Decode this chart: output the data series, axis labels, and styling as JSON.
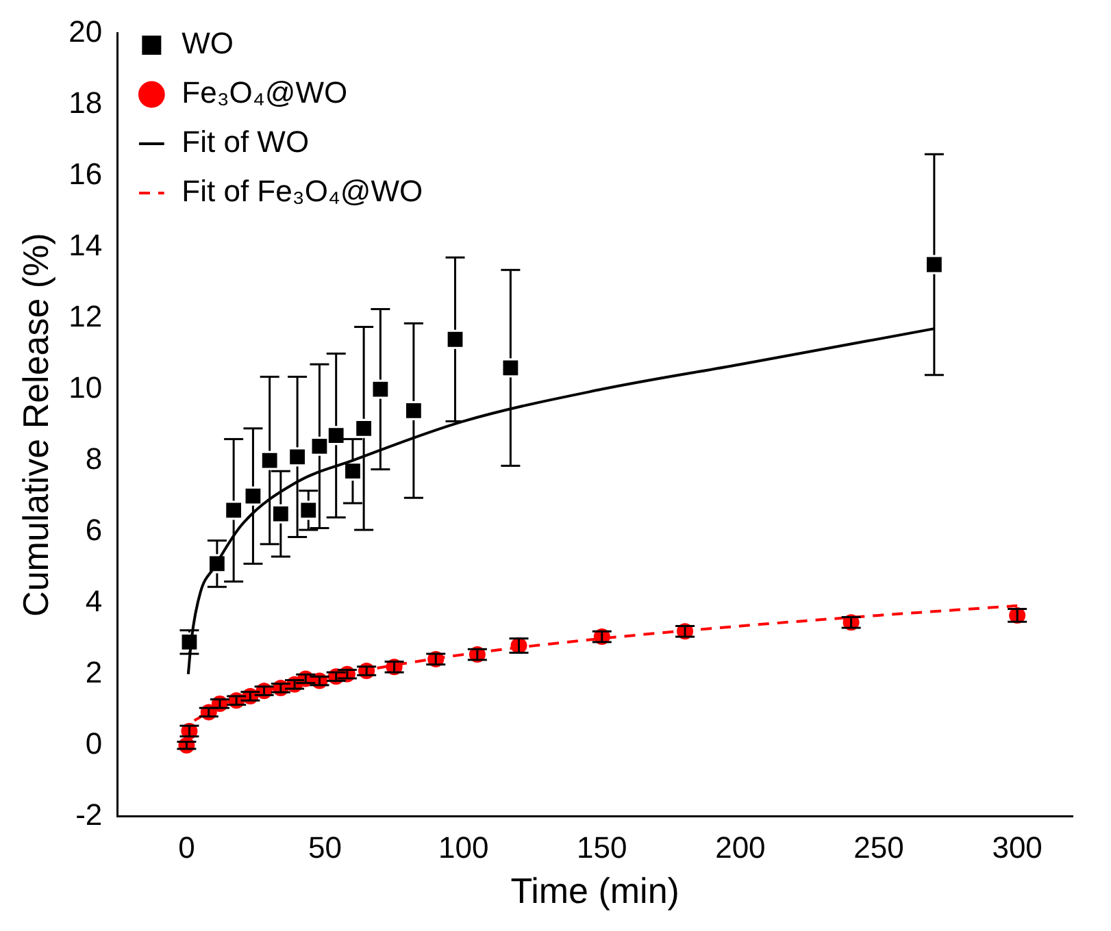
{
  "chart_data": {
    "type": "scatter",
    "xlabel": "Time (min)",
    "ylabel": "Cumulative Release (%)",
    "xlim": [
      -25,
      320
    ],
    "xticks": [
      0,
      50,
      100,
      150,
      200,
      250,
      300
    ],
    "ylim": [
      -2,
      20
    ],
    "yticks": [
      -2,
      0,
      2,
      4,
      6,
      8,
      10,
      12,
      14,
      16,
      18,
      20
    ],
    "grid": false,
    "legend": "top left",
    "series": [
      {
        "name": "WO",
        "type": "scatter",
        "marker": "square",
        "color": "#000000",
        "x": [
          1,
          11,
          17,
          24,
          30,
          34,
          40,
          44,
          48,
          54,
          60,
          64,
          70,
          82,
          97,
          117,
          270
        ],
        "values": [
          2.9,
          5.1,
          6.6,
          7.0,
          8.0,
          6.5,
          8.1,
          6.6,
          8.4,
          8.7,
          7.7,
          8.9,
          10.0,
          9.4,
          11.4,
          10.6,
          13.5
        ],
        "errors": [
          0.33,
          0.65,
          2.0,
          1.9,
          2.35,
          1.2,
          2.25,
          0.55,
          2.3,
          2.3,
          0.9,
          2.85,
          2.25,
          2.45,
          2.3,
          2.75,
          3.1
        ]
      },
      {
        "name": "Fe₃O₄@WO",
        "type": "scatter",
        "marker": "circle",
        "color": "#ff0000",
        "x": [
          0,
          1,
          8,
          12,
          18,
          23,
          28,
          34,
          39,
          43,
          48,
          54,
          58,
          65,
          75,
          90,
          105,
          120,
          150,
          180,
          240,
          300
        ],
        "values": [
          0,
          0.4,
          0.93,
          1.17,
          1.26,
          1.38,
          1.53,
          1.61,
          1.71,
          1.87,
          1.81,
          1.93,
          2.0,
          2.09,
          2.2,
          2.42,
          2.55,
          2.8,
          3.05,
          3.2,
          3.45,
          3.65
        ],
        "errors": [
          0.1,
          0.15,
          0.12,
          0.12,
          0.12,
          0.12,
          0.12,
          0.12,
          0.12,
          0.12,
          0.12,
          0.12,
          0.12,
          0.12,
          0.15,
          0.15,
          0.15,
          0.2,
          0.15,
          0.15,
          0.15,
          0.18
        ]
      },
      {
        "name": "Fit of WO",
        "type": "line",
        "marker": "none",
        "line_style": "solid",
        "color": "#000000",
        "x": [
          0.6,
          1.8,
          5,
          10,
          20,
          40,
          60,
          100,
          150,
          200,
          270
        ],
        "values": [
          2.0,
          3.0,
          4.3,
          5.0,
          6.2,
          7.4,
          8.0,
          9.1,
          10.0,
          10.7,
          11.7
        ]
      },
      {
        "name": "Fit of Fe₃O₄@WO",
        "type": "line",
        "marker": "none",
        "line_style": "dashed",
        "color": "#ff0000",
        "x": [
          0.3,
          1,
          5,
          10,
          20,
          40,
          60,
          100,
          150,
          200,
          250,
          300
        ],
        "values": [
          0.2,
          0.45,
          0.8,
          1.05,
          1.35,
          1.75,
          2.05,
          2.55,
          3.0,
          3.35,
          3.65,
          3.92
        ]
      }
    ]
  }
}
